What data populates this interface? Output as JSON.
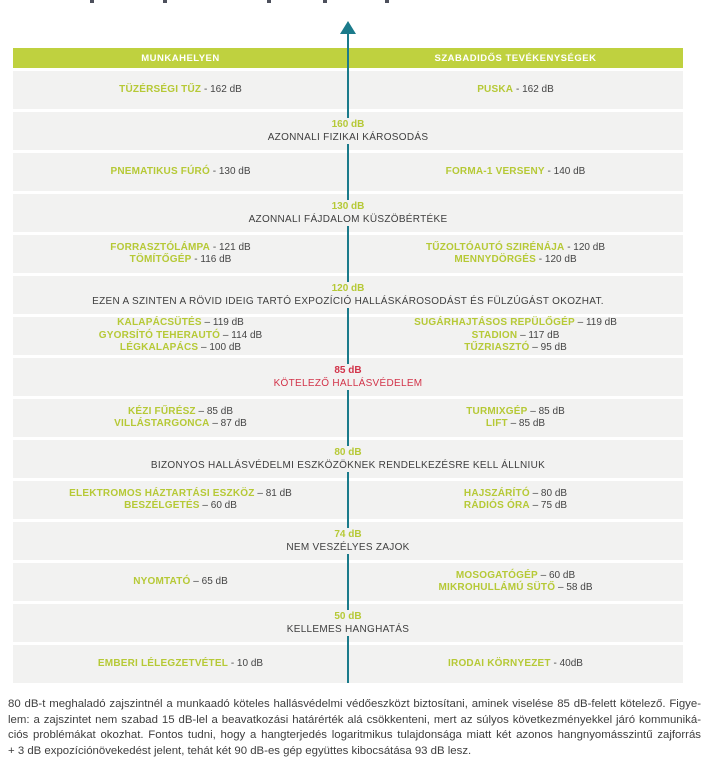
{
  "colors": {
    "accent_green": "#b6c936",
    "header_green": "#bfd13f",
    "axis_teal": "#1b7b8b",
    "warning_red": "#d23349",
    "band_gray": "#f2f2f1",
    "text_dark": "#454545"
  },
  "header": {
    "left": "MUNKAHELYEN",
    "right": "SZABADIDŐS TEVÉKENYSÉGEK"
  },
  "axis": {
    "icon": "up-arrow"
  },
  "bands": [
    {
      "type": "items",
      "left": [
        {
          "label": "TÜZÉRSÉGI TŰZ",
          "value": " - 162 dB"
        }
      ],
      "right": [
        {
          "label": "PUSKA",
          "value": " - 162 dB"
        }
      ]
    },
    {
      "type": "threshold",
      "db": "160 dB",
      "text": "AZONNALI FIZIKAI KÁROSODÁS"
    },
    {
      "type": "items",
      "left": [
        {
          "label": "PNEMATIKUS FÚRÓ",
          "value": " - 130 dB"
        }
      ],
      "right": [
        {
          "label": "FORMA-1 VERSENY",
          "value": " - 140 dB"
        }
      ]
    },
    {
      "type": "threshold",
      "db": "130 dB",
      "text": "AZONNALI FÁJDALOM KÜSZÖBÉRTÉKE"
    },
    {
      "type": "items",
      "left": [
        {
          "label": "FORRASZTÓLÁMPA",
          "value": " - 121 dB"
        },
        {
          "label": "TÖMÍTŐGÉP",
          "value": " - 116 dB"
        }
      ],
      "right": [
        {
          "label": "TŰZOLTÓAUTÓ SZIRÉNÁJA",
          "value": " - 120 dB"
        },
        {
          "label": "MENNYDÖRGÉS",
          "value": " - 120 dB"
        }
      ]
    },
    {
      "type": "threshold",
      "db": "120 dB",
      "text": "EZEN A SZINTEN A RÖVID IDEIG TARTÓ EXPOZÍCIÓ HALLÁSKÁROSODÁST ÉS FÜLZÚGÁST OKOZHAT."
    },
    {
      "type": "items",
      "left": [
        {
          "label": "KALAPÁCSÜTÉS",
          "value": " – 119 dB"
        },
        {
          "label": "GYORSÍTÓ TEHERAUTÓ",
          "value": " – 114 dB"
        },
        {
          "label": "LÉGKALAPÁCS",
          "value": " – 100 dB"
        }
      ],
      "right": [
        {
          "label": "SUGÁRHAJTÁSOS REPÜLŐGÉP",
          "value": " – 119 dB"
        },
        {
          "label": "STADION",
          "value": " – 117 dB"
        },
        {
          "label": "TŰZRIASZTÓ",
          "value": " – 95 dB"
        }
      ]
    },
    {
      "type": "threshold",
      "db": "85 dB",
      "text": "KÖTELEZŐ HALLÁSVÉDELEM",
      "emphasis": "red"
    },
    {
      "type": "items",
      "left": [
        {
          "label": "KÉZI FŰRÉSZ",
          "value": " – 85 dB"
        },
        {
          "label": "VILLÁSTARGONCA",
          "value": " – 87 dB"
        }
      ],
      "right": [
        {
          "label": "TURMIXGÉP",
          "value": " – 85 dB"
        },
        {
          "label": "LIFT",
          "value": " – 85 dB"
        }
      ]
    },
    {
      "type": "threshold",
      "db": "80 dB",
      "text": "BIZONYOS HALLÁSVÉDELMI ESZKÖZÖKNEK RENDELKEZÉSRE KELL ÁLLNIUK"
    },
    {
      "type": "items",
      "left": [
        {
          "label": "ELEKTROMOS HÁZTARTÁSI ESZKÖZ",
          "value": " – 81 dB"
        },
        {
          "label": "BESZÉLGETÉS",
          "value": " – 60 dB"
        }
      ],
      "right": [
        {
          "label": "HAJSZÁRÍTÓ",
          "value": " – 80 dB"
        },
        {
          "label": "RÁDIÓS ÓRA",
          "value": " – 75 dB"
        }
      ]
    },
    {
      "type": "threshold",
      "db": "74 dB",
      "text": "NEM VESZÉLYES ZAJOK"
    },
    {
      "type": "items",
      "left": [
        {
          "label": "NYOMTATÓ",
          "value": " – 65 dB"
        }
      ],
      "right": [
        {
          "label": "MOSOGATÓGÉP",
          "value": " – 60 dB"
        },
        {
          "label": "MIKROHULLÁMÚ SÜTŐ",
          "value": " – 58 dB"
        }
      ]
    },
    {
      "type": "threshold",
      "db": "50 dB",
      "text": "KELLEMES HANGHATÁS"
    },
    {
      "type": "items",
      "left": [
        {
          "label": "EMBERI LÉLEGZETVÉTEL",
          "value": " - 10 dB"
        }
      ],
      "right": [
        {
          "label": "IRODAI KÖRNYEZET",
          "value": " - 40dB"
        }
      ]
    }
  ],
  "footer": {
    "lines": [
      "80 dB-t meghaladó zajszintnél a munkaadó köteles hallásvédelmi védőeszközt biztosítani, aminek viselése 85 dB-felett kötelező. Figye-",
      "lem: a zajszintet nem szabad 15 dB-lel a beavatkozási határérték alá csökkenteni, mert az súlyos következményekkel járó kommuniká-",
      "ciós problémákat okozhat. Fontos tudni, hogy a hangterjedés logaritmikus tulajdonsága miatt két azonos hangnyomásszintű zajforrás",
      "+ 3 dB expozíciónövekedést jelent, tehát két 90 dB-es gép együttes kibocsátása 93 dB lesz."
    ]
  }
}
